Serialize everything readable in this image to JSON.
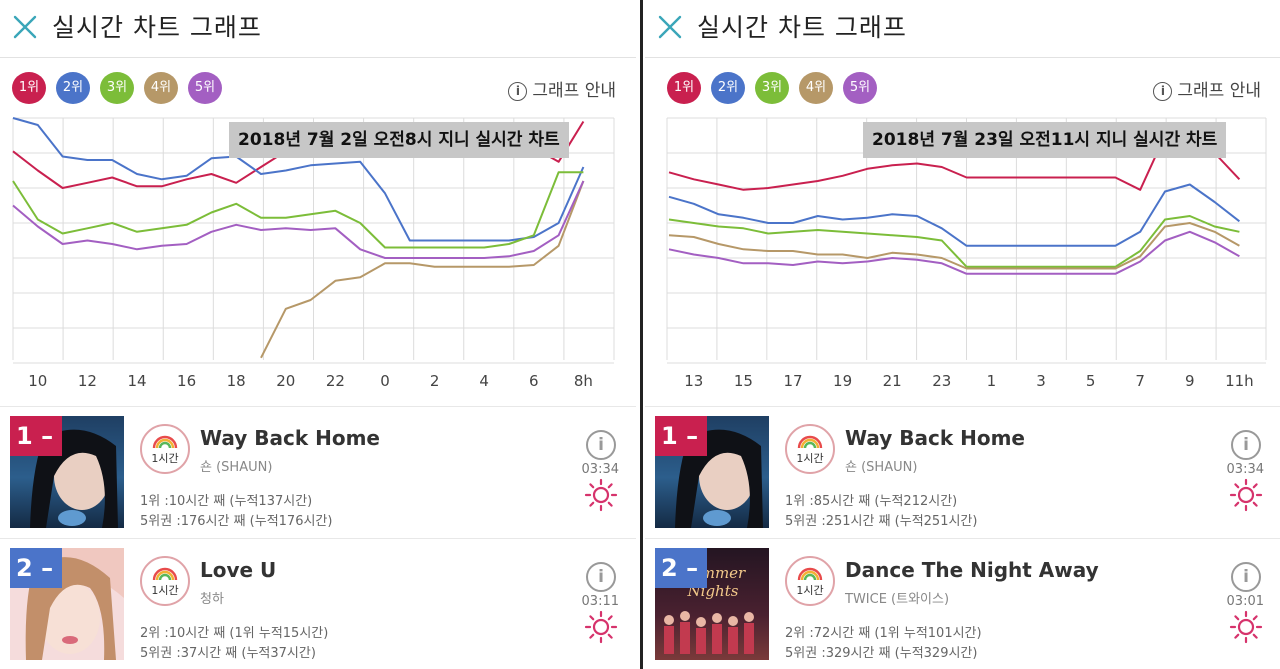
{
  "panels": [
    {
      "header": {
        "title": "실시간 차트 그래프"
      },
      "rank_chips": [
        {
          "label": "1위",
          "color": "#c9204f"
        },
        {
          "label": "2위",
          "color": "#4b74c9"
        },
        {
          "label": "3위",
          "color": "#7cbd39"
        },
        {
          "label": "4위",
          "color": "#b69868"
        },
        {
          "label": "5위",
          "color": "#a35fc2"
        }
      ],
      "guide_label": "그래프 안내",
      "caption": "2018년 7월 2일 오전8시 지니 실시간 차트",
      "chart_data": {
        "type": "line",
        "x": [
          "9",
          "10",
          "11",
          "12",
          "13",
          "14",
          "15",
          "16",
          "17",
          "18",
          "19",
          "20",
          "21",
          "22",
          "23",
          "0",
          "1",
          "2",
          "3",
          "4",
          "5",
          "6",
          "7",
          "8h"
        ],
        "x_tick_labels": [
          "10",
          "12",
          "14",
          "16",
          "18",
          "20",
          "22",
          "0",
          "2",
          "4",
          "6",
          "8h"
        ],
        "y_axis": "rank (1 = top), no printed scale",
        "series": [
          {
            "name": "1위",
            "values": [
              1.9,
              3.0,
              4.0,
              3.7,
              3.4,
              3.9,
              3.9,
              3.5,
              3.2,
              3.7,
              2.8,
              1.9,
              1.0,
              1.7,
              1.7,
              1.7,
              1.7,
              1.7,
              1.7,
              1.7,
              1.7,
              1.7,
              2.5,
              0.2
            ]
          },
          {
            "name": "2위",
            "values": [
              0.0,
              0.4,
              2.2,
              2.4,
              2.4,
              3.2,
              3.5,
              3.3,
              2.3,
              2.2,
              3.2,
              3.0,
              2.7,
              2.6,
              2.5,
              4.3,
              7.0,
              7.0,
              7.0,
              7.0,
              7.0,
              6.8,
              6.0,
              2.8
            ]
          },
          {
            "name": "3위",
            "values": [
              3.6,
              5.8,
              6.6,
              6.3,
              6.0,
              6.5,
              6.3,
              6.1,
              5.4,
              4.9,
              5.7,
              5.7,
              5.5,
              5.3,
              6.0,
              7.4,
              7.4,
              7.4,
              7.4,
              7.4,
              7.2,
              6.7,
              3.1,
              3.1
            ]
          },
          {
            "name": "4위",
            "values": [
              null,
              null,
              null,
              null,
              null,
              null,
              null,
              null,
              null,
              null,
              13.7,
              10.9,
              10.4,
              9.3,
              9.1,
              8.3,
              8.3,
              8.5,
              8.5,
              8.5,
              8.5,
              8.4,
              7.3,
              3.6
            ]
          },
          {
            "name": "5위",
            "values": [
              5.0,
              6.2,
              7.2,
              7.0,
              7.2,
              7.5,
              7.3,
              7.2,
              6.5,
              6.1,
              6.4,
              6.3,
              6.4,
              6.3,
              7.5,
              8.0,
              8.0,
              8.0,
              8.0,
              8.0,
              7.9,
              7.6,
              6.7,
              3.6
            ]
          }
        ]
      },
      "songs": [
        {
          "rank": "1",
          "rank_mark": "–",
          "rank_color": "#c9204f",
          "hours_label": "1시간",
          "title": "Way Back Home",
          "artist": "숀 (SHAUN)",
          "time": "03:34",
          "stat1": "1위 :10시간 째 (누적137시간)",
          "stat2": "5위권 :176시간 째 (누적176시간)"
        },
        {
          "rank": "2",
          "rank_mark": "–",
          "rank_color": "#4b74c9",
          "hours_label": "1시간",
          "title": "Love U",
          "artist": "청하",
          "time": "03:11",
          "stat1": "2위 :10시간 째 (1위 누적15시간)",
          "stat2": "5위권 :37시간 째 (누적37시간)"
        }
      ]
    },
    {
      "header": {
        "title": "실시간 차트 그래프"
      },
      "rank_chips": [
        {
          "label": "1위",
          "color": "#c9204f"
        },
        {
          "label": "2위",
          "color": "#4b74c9"
        },
        {
          "label": "3위",
          "color": "#7cbd39"
        },
        {
          "label": "4위",
          "color": "#b69868"
        },
        {
          "label": "5위",
          "color": "#a35fc2"
        }
      ],
      "guide_label": "그래프 안내",
      "caption": "2018년 7월 23일 오전11시 지니 실시간 차트",
      "chart_data": {
        "type": "line",
        "x": [
          "12",
          "13",
          "14",
          "15",
          "16",
          "17",
          "18",
          "19",
          "20",
          "21",
          "22",
          "23",
          "0",
          "1",
          "2",
          "3",
          "4",
          "5",
          "6",
          "7",
          "8",
          "9",
          "10",
          "11h"
        ],
        "x_tick_labels": [
          "13",
          "15",
          "17",
          "19",
          "21",
          "23",
          "1",
          "3",
          "5",
          "7",
          "9",
          "11h"
        ],
        "y_axis": "rank (1 = top), no printed scale",
        "series": [
          {
            "name": "1위",
            "values": [
              3.1,
              3.5,
              3.8,
              4.1,
              4.0,
              3.8,
              3.6,
              3.3,
              2.9,
              2.7,
              2.6,
              2.8,
              3.4,
              3.4,
              3.4,
              3.4,
              3.4,
              3.4,
              3.4,
              4.1,
              1.0,
              1.2,
              2.0,
              3.5
            ]
          },
          {
            "name": "2위",
            "values": [
              4.5,
              4.9,
              5.5,
              5.7,
              6.0,
              6.0,
              5.6,
              5.8,
              5.7,
              5.5,
              5.6,
              6.3,
              7.3,
              7.3,
              7.3,
              7.3,
              7.3,
              7.3,
              7.3,
              6.5,
              4.2,
              3.8,
              4.8,
              5.9
            ]
          },
          {
            "name": "3위",
            "values": [
              5.8,
              6.0,
              6.2,
              6.3,
              6.6,
              6.5,
              6.4,
              6.5,
              6.6,
              6.7,
              6.8,
              7.0,
              8.5,
              8.5,
              8.5,
              8.5,
              8.5,
              8.5,
              8.5,
              7.6,
              5.8,
              5.6,
              6.2,
              6.5
            ]
          },
          {
            "name": "4위",
            "values": [
              6.7,
              6.8,
              7.2,
              7.5,
              7.6,
              7.6,
              7.8,
              7.8,
              8.0,
              7.7,
              7.8,
              8.0,
              8.6,
              8.6,
              8.6,
              8.6,
              8.6,
              8.6,
              8.6,
              7.9,
              6.2,
              6.0,
              6.5,
              7.3
            ]
          },
          {
            "name": "5위",
            "values": [
              7.5,
              7.8,
              8.0,
              8.3,
              8.3,
              8.4,
              8.2,
              8.3,
              8.2,
              8.0,
              8.1,
              8.3,
              8.9,
              8.9,
              8.9,
              8.9,
              8.9,
              8.9,
              8.9,
              8.2,
              7.0,
              6.5,
              7.1,
              7.9
            ]
          }
        ]
      },
      "songs": [
        {
          "rank": "1",
          "rank_mark": "–",
          "rank_color": "#c9204f",
          "hours_label": "1시간",
          "title": "Way Back Home",
          "artist": "숀 (SHAUN)",
          "time": "03:34",
          "stat1": "1위 :85시간 째 (누적212시간)",
          "stat2": "5위권 :251시간 째 (누적251시간)"
        },
        {
          "rank": "2",
          "rank_mark": "–",
          "rank_color": "#4b74c9",
          "hours_label": "1시간",
          "title": "Dance The Night Away",
          "artist": "TWICE (트와이스)",
          "time": "03:01",
          "stat1": "2위 :72시간 째 (1위 누적101시간)",
          "stat2": "5위권 :329시간 째 (누적329시간)"
        }
      ]
    }
  ],
  "chart_colors": {
    "grid": "#dcdcdc",
    "close_icon": "#3aa6b9",
    "sun_icon": "#d6336c",
    "hours_badge_border": "#e0a3a8"
  },
  "icons": [
    "close-icon",
    "info-icon",
    "rainbow-icon",
    "sun-icon"
  ]
}
